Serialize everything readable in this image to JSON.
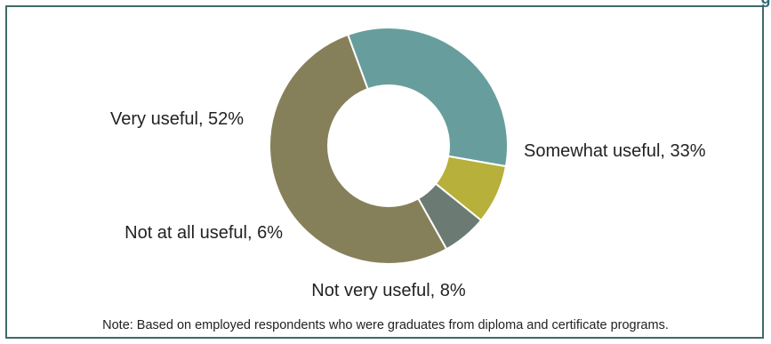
{
  "header_fragment": "g",
  "chart_data": {
    "type": "pie",
    "style": "donut",
    "categories": [
      "Very useful",
      "Somewhat useful",
      "Not very useful",
      "Not at all useful"
    ],
    "values": [
      52,
      33,
      8,
      6
    ],
    "labels": [
      "Very useful, 52%",
      "Somewhat useful, 33%",
      "Not very useful, 8%",
      "Not at all useful, 6%"
    ],
    "colors": [
      "#86805a",
      "#679e9d",
      "#b7b03a",
      "#6b7b73"
    ],
    "start_angle_deg": -20,
    "direction": "clockwise",
    "legend": "none",
    "note": "Note: Based on employed respondents who were graduates from diploma and certificate programs."
  }
}
